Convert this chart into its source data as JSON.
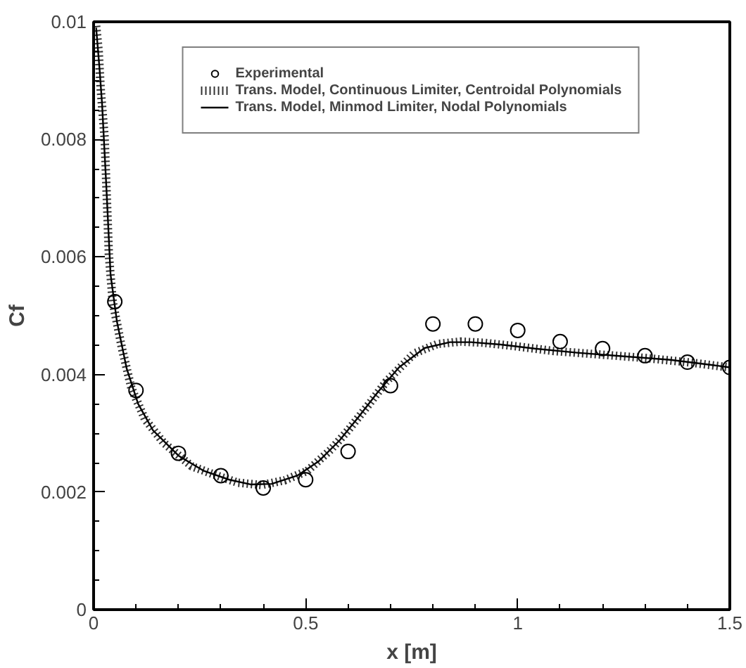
{
  "chart_data": {
    "type": "line",
    "xlabel": "x [m]",
    "ylabel": "Cf",
    "xlim": [
      0,
      1.5
    ],
    "ylim": [
      0,
      0.01
    ],
    "xticks": [
      0,
      0.5,
      1,
      1.5
    ],
    "yticks": [
      0,
      0.002,
      0.004,
      0.006,
      0.008,
      0.01
    ],
    "grid": false,
    "legend": "top",
    "series": [
      {
        "name": "Experimental",
        "type": "scatter",
        "marker": "circle",
        "color": "#000000",
        "x": [
          0.05,
          0.1,
          0.2,
          0.3,
          0.4,
          0.5,
          0.6,
          0.7,
          0.8,
          0.9,
          1.0,
          1.1,
          1.2,
          1.3,
          1.4,
          1.5
        ],
        "values": [
          0.00524,
          0.00373,
          0.00266,
          0.00228,
          0.00207,
          0.00221,
          0.00269,
          0.00381,
          0.00486,
          0.00486,
          0.00475,
          0.00456,
          0.00444,
          0.00432,
          0.00421,
          0.00412
        ]
      },
      {
        "name": "Trans. Model, Continuous Limiter, Centroidal Polynomials",
        "line_style": "dotted",
        "color": "#000000",
        "x": [
          0.005,
          0.012,
          0.017,
          0.026,
          0.036,
          0.045,
          0.067,
          0.089,
          0.121,
          0.165,
          0.231,
          0.291,
          0.34,
          0.396,
          0.45,
          0.504,
          0.559,
          0.6,
          0.65,
          0.69,
          0.756,
          0.811,
          0.865,
          0.92,
          0.997,
          1.084,
          1.194,
          1.303,
          1.412,
          1.5
        ],
        "values": [
          0.01,
          0.0095,
          0.00883,
          0.00803,
          0.00604,
          0.00524,
          0.00444,
          0.00377,
          0.00324,
          0.00284,
          0.00244,
          0.00228,
          0.00216,
          0.00212,
          0.0022,
          0.00236,
          0.00272,
          0.00305,
          0.0035,
          0.00388,
          0.00436,
          0.00452,
          0.00456,
          0.00454,
          0.00448,
          0.0044,
          0.00434,
          0.00428,
          0.0042,
          0.00412
        ]
      },
      {
        "name": "Trans. Model, Minmod Limiter, Nodal Polynomials",
        "marker": "none",
        "color": "#000000",
        "x": [
          0.006,
          0.014,
          0.02,
          0.03,
          0.04,
          0.055,
          0.078,
          0.105,
          0.14,
          0.2,
          0.26,
          0.32,
          0.37,
          0.42,
          0.48,
          0.53,
          0.58,
          0.625,
          0.67,
          0.72,
          0.78,
          0.84,
          0.89,
          0.96,
          1.04,
          1.14,
          1.25,
          1.36,
          1.46,
          1.5
        ],
        "values": [
          0.0099,
          0.0092,
          0.0086,
          0.0072,
          0.0057,
          0.0049,
          0.0041,
          0.0035,
          0.00305,
          0.00262,
          0.00236,
          0.00221,
          0.00213,
          0.00214,
          0.00228,
          0.00252,
          0.00288,
          0.00328,
          0.0037,
          0.00412,
          0.00445,
          0.00455,
          0.00455,
          0.00451,
          0.00444,
          0.00437,
          0.00431,
          0.00425,
          0.00416,
          0.00412
        ]
      }
    ]
  }
}
